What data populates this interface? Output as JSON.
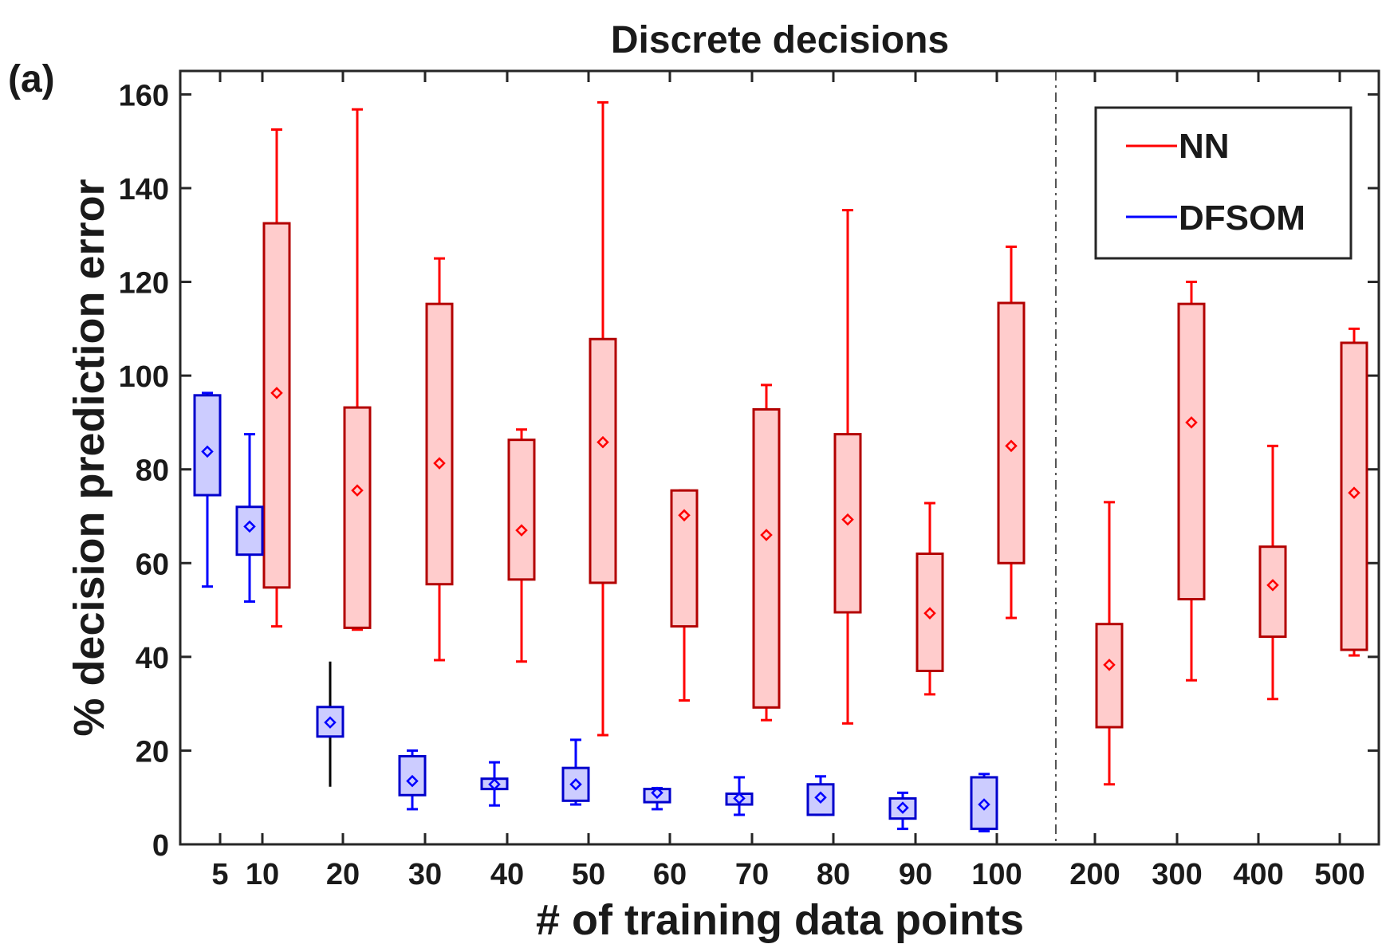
{
  "panel_label": "(a)",
  "chart_data": {
    "type": "box",
    "title": "Discrete decisions",
    "xlabel": "# of training data points",
    "ylabel": "% decision prediction error",
    "ylim": [
      0,
      165
    ],
    "yticks": [
      0,
      20,
      40,
      60,
      80,
      100,
      120,
      140,
      160
    ],
    "categories": [
      "5",
      "10",
      "20",
      "30",
      "40",
      "50",
      "60",
      "70",
      "80",
      "90",
      "100",
      "200",
      "300",
      "400",
      "500"
    ],
    "separator_after": "100",
    "legend": {
      "position": "top-right",
      "entries": [
        {
          "label": "NN",
          "color": "#ff0000"
        },
        {
          "label": "DFSOM",
          "color": "#0000ff"
        }
      ]
    },
    "series": [
      {
        "name": "NN",
        "color": "#ff0000",
        "box_edge": "#b30000",
        "box_fill": "#ffcccc",
        "boxes": [
          {
            "category": "10",
            "whisker_low": 46.5,
            "q1": 54.8,
            "q3": 132.5,
            "whisker_high": 152.5,
            "mean": 96.3
          },
          {
            "category": "20",
            "whisker_low": 45.8,
            "q1": 46.2,
            "q3": 93.2,
            "whisker_high": 156.8,
            "mean": 75.5
          },
          {
            "category": "30",
            "whisker_low": 39.3,
            "q1": 55.5,
            "q3": 115.3,
            "whisker_high": 125.0,
            "mean": 81.3
          },
          {
            "category": "40",
            "whisker_low": 39.0,
            "q1": 56.5,
            "q3": 86.3,
            "whisker_high": 88.5,
            "mean": 67.0
          },
          {
            "category": "50",
            "whisker_low": 23.3,
            "q1": 55.8,
            "q3": 107.8,
            "whisker_high": 158.3,
            "mean": 85.8
          },
          {
            "category": "60",
            "whisker_low": 30.7,
            "q1": 46.5,
            "q3": 75.5,
            "whisker_high": 75.5,
            "mean": 70.2
          },
          {
            "category": "70",
            "whisker_low": 26.5,
            "q1": 29.2,
            "q3": 92.8,
            "whisker_high": 98.0,
            "mean": 66.0
          },
          {
            "category": "80",
            "whisker_low": 25.8,
            "q1": 49.5,
            "q3": 87.5,
            "whisker_high": 135.3,
            "mean": 69.3
          },
          {
            "category": "90",
            "whisker_low": 32.0,
            "q1": 37.0,
            "q3": 62.0,
            "whisker_high": 72.8,
            "mean": 49.3
          },
          {
            "category": "100",
            "whisker_low": 48.3,
            "q1": 60.0,
            "q3": 115.5,
            "whisker_high": 127.5,
            "mean": 85.0
          },
          {
            "category": "200",
            "whisker_low": 12.8,
            "q1": 25.0,
            "q3": 47.0,
            "whisker_high": 73.0,
            "mean": 38.3
          },
          {
            "category": "300",
            "whisker_low": 35.0,
            "q1": 52.3,
            "q3": 115.3,
            "whisker_high": 120.0,
            "mean": 90.0
          },
          {
            "category": "400",
            "whisker_low": 31.0,
            "q1": 44.3,
            "q3": 63.5,
            "whisker_high": 85.0,
            "mean": 55.3
          },
          {
            "category": "500",
            "whisker_low": 40.3,
            "q1": 41.5,
            "q3": 107.0,
            "whisker_high": 110.0,
            "mean": 75.0
          }
        ]
      },
      {
        "name": "DFSOM",
        "color": "#0000ff",
        "box_edge": "#0000cc",
        "box_fill": "#ccccff",
        "boxes": [
          {
            "category": "5",
            "whisker_low": 55.0,
            "q1": 74.5,
            "q3": 95.8,
            "whisker_high": 96.3,
            "mean": 83.8
          },
          {
            "category": "10",
            "whisker_low": 51.8,
            "q1": 61.8,
            "q3": 72.0,
            "whisker_high": 87.5,
            "mean": 67.8
          },
          {
            "category": "20",
            "whisker_low": 12.3,
            "q1": 23.0,
            "q3": 29.3,
            "whisker_high": 39.0,
            "mean": 26.0,
            "whisker_color": "#000000"
          },
          {
            "category": "30",
            "whisker_low": 7.5,
            "q1": 10.5,
            "q3": 18.8,
            "whisker_high": 20.0,
            "mean": 13.5
          },
          {
            "category": "40",
            "whisker_low": 8.3,
            "q1": 11.8,
            "q3": 14.0,
            "whisker_high": 17.5,
            "mean": 12.8
          },
          {
            "category": "50",
            "whisker_low": 8.5,
            "q1": 9.3,
            "q3": 16.3,
            "whisker_high": 22.3,
            "mean": 12.8
          },
          {
            "category": "60",
            "whisker_low": 7.5,
            "q1": 9.0,
            "q3": 11.8,
            "whisker_high": 12.0,
            "mean": 11.0
          },
          {
            "category": "70",
            "whisker_low": 6.3,
            "q1": 8.5,
            "q3": 10.8,
            "whisker_high": 14.3,
            "mean": 9.8
          },
          {
            "category": "80",
            "whisker_low": 6.3,
            "q1": 6.3,
            "q3": 12.8,
            "whisker_high": 14.5,
            "mean": 10.0
          },
          {
            "category": "90",
            "whisker_low": 3.3,
            "q1": 5.5,
            "q3": 9.8,
            "whisker_high": 11.0,
            "mean": 7.8
          },
          {
            "category": "100",
            "whisker_low": 2.8,
            "q1": 3.3,
            "q3": 14.3,
            "whisker_high": 15.0,
            "mean": 8.5
          }
        ]
      }
    ]
  }
}
